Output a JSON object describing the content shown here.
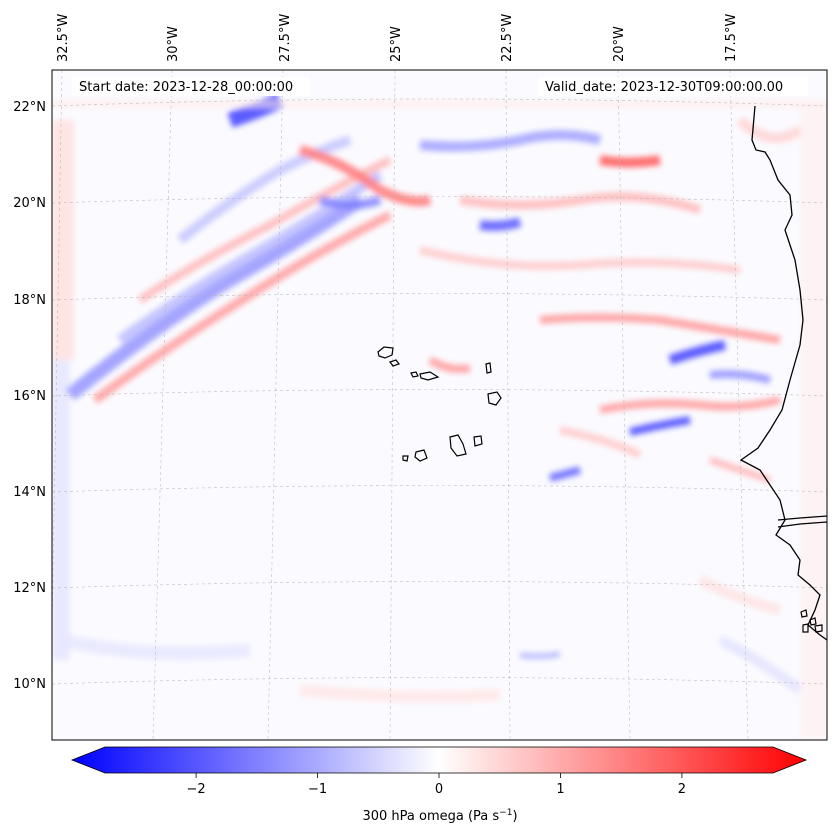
{
  "map": {
    "start_date": "Start date: 2023-12-28_00:00:00",
    "valid_date": "Valid_date: 2023-12-30T09:00:00.00",
    "lon_labels": [
      "32.5°W",
      "30°W",
      "27.5°W",
      "25°W",
      "22.5°W",
      "20°W",
      "17.5°W"
    ],
    "lat_labels": [
      "22°N",
      "20°N",
      "18°N",
      "16°N",
      "14°N",
      "12°N",
      "10°N"
    ],
    "islands": "Cape Verde islands",
    "coastline": "West African coast (Mauritania / Senegal / Guinea-Bissau)"
  },
  "colorbar": {
    "label": "300 hPa omega (Pa s",
    "label_sup": "−1",
    "label_close": ")",
    "ticks": [
      "−2",
      "−1",
      "0",
      "1",
      "2"
    ],
    "range": [
      -2.75,
      2.75
    ],
    "cmap": [
      "#0000ff",
      "#ffffff",
      "#ff0000"
    ]
  }
}
